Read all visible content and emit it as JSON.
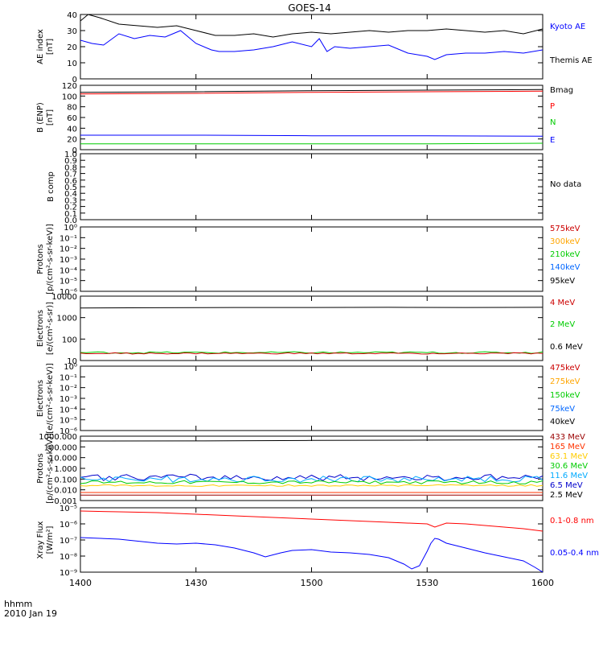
{
  "title": "GOES-14",
  "time_axis": {
    "ticks": [
      "1400",
      "1430",
      "1500",
      "1530",
      "1600"
    ],
    "label_line1": "hhmm",
    "label_line2": "2010 Jan 19"
  },
  "chart_data": [
    {
      "id": "ae",
      "type": "line",
      "ylabel": [
        "AE index",
        "[nT]"
      ],
      "ylim": [
        0,
        40
      ],
      "yticks": [
        {
          "v": 0,
          "t": "0"
        },
        {
          "v": 10,
          "t": "10"
        },
        {
          "v": 20,
          "t": "20"
        },
        {
          "v": 30,
          "t": "30"
        },
        {
          "v": 40,
          "t": "40"
        }
      ],
      "legend": [
        {
          "text": "Kyoto AE",
          "color": "#0000ff"
        },
        {
          "text": "Themis AE",
          "color": "#000000"
        }
      ],
      "series": [
        {
          "name": "Kyoto AE",
          "color": "#0000ff",
          "x": [
            0,
            3,
            6,
            10,
            14,
            18,
            22,
            26,
            30,
            34,
            36,
            40,
            45,
            50,
            55,
            60,
            62,
            64,
            66,
            70,
            75,
            80,
            85,
            90,
            92,
            95,
            100,
            105,
            110,
            115,
            120
          ],
          "y": [
            24,
            22,
            21,
            28,
            25,
            27,
            26,
            30,
            22,
            18,
            17,
            17,
            18,
            20,
            23,
            20,
            25,
            17,
            20,
            19,
            20,
            21,
            16,
            14,
            12,
            15,
            16,
            16,
            17,
            16,
            18
          ]
        },
        {
          "name": "Themis AE",
          "color": "#000000",
          "x": [
            0,
            2,
            5,
            10,
            15,
            20,
            25,
            30,
            35,
            40,
            45,
            50,
            55,
            60,
            65,
            70,
            75,
            80,
            85,
            90,
            95,
            100,
            105,
            110,
            115,
            120
          ],
          "y": [
            36,
            40,
            38,
            34,
            33,
            32,
            33,
            30,
            27,
            27,
            28,
            26,
            28,
            29,
            28,
            29,
            30,
            29,
            30,
            30,
            31,
            30,
            29,
            30,
            28,
            31
          ]
        }
      ]
    },
    {
      "id": "bfield",
      "type": "line",
      "ylabel": [
        "B (ENP)",
        "[nT]"
      ],
      "ylim": [
        0,
        120
      ],
      "yticks": [
        {
          "v": 0,
          "t": "0"
        },
        {
          "v": 20,
          "t": "20"
        },
        {
          "v": 40,
          "t": "40"
        },
        {
          "v": 60,
          "t": "60"
        },
        {
          "v": 80,
          "t": "80"
        },
        {
          "v": 100,
          "t": "100"
        },
        {
          "v": 120,
          "t": "120"
        }
      ],
      "legend": [
        {
          "text": "Bmag",
          "color": "#000000"
        },
        {
          "text": "P",
          "color": "#ff0000"
        },
        {
          "text": "N",
          "color": "#00cc00"
        },
        {
          "text": "E",
          "color": "#0000ff"
        }
      ],
      "series": [
        {
          "name": "Bmag",
          "color": "#000000",
          "x": [
            0,
            30,
            60,
            90,
            120
          ],
          "y": [
            107,
            108,
            110,
            111,
            112
          ]
        },
        {
          "name": "P",
          "color": "#ff0000",
          "x": [
            0,
            30,
            60,
            90,
            120
          ],
          "y": [
            104,
            105,
            107,
            108,
            109
          ]
        },
        {
          "name": "E",
          "color": "#0000ff",
          "x": [
            0,
            30,
            60,
            90,
            120
          ],
          "y": [
            27,
            27,
            26,
            26,
            25
          ]
        },
        {
          "name": "N",
          "color": "#00cc00",
          "x": [
            0,
            30,
            60,
            90,
            120
          ],
          "y": [
            11,
            11,
            11,
            11,
            12
          ]
        }
      ]
    },
    {
      "id": "bcomp",
      "type": "line",
      "ylabel": [
        "B comp"
      ],
      "ylim": [
        0,
        1
      ],
      "yticks": [
        {
          "v": 0,
          "t": "0.0"
        },
        {
          "v": 0.1,
          "t": "0.1"
        },
        {
          "v": 0.2,
          "t": "0.2"
        },
        {
          "v": 0.3,
          "t": "0.3"
        },
        {
          "v": 0.4,
          "t": "0.4"
        },
        {
          "v": 0.5,
          "t": "0.5"
        },
        {
          "v": 0.6,
          "t": "0.6"
        },
        {
          "v": 0.7,
          "t": "0.7"
        },
        {
          "v": 0.8,
          "t": "0.8"
        },
        {
          "v": 0.9,
          "t": "0.9"
        },
        {
          "v": 1,
          "t": "1.0"
        }
      ],
      "legend": [
        {
          "text": "No data",
          "color": "#000000"
        }
      ],
      "series": []
    },
    {
      "id": "protons_mag",
      "type": "line",
      "log": true,
      "ylabel": [
        "Protons",
        "[p/(cm²-s-sr-keV)]"
      ],
      "ylim": [
        -6,
        0
      ],
      "yticks": [
        {
          "v": -6,
          "t": "10⁻⁶"
        },
        {
          "v": -5,
          "t": "10⁻⁵"
        },
        {
          "v": -4,
          "t": "10⁻⁴"
        },
        {
          "v": -3,
          "t": "10⁻³"
        },
        {
          "v": -2,
          "t": "10⁻²"
        },
        {
          "v": -1,
          "t": "10⁻¹"
        },
        {
          "v": 0,
          "t": "10⁰"
        }
      ],
      "legend": [
        {
          "text": "575keV",
          "color": "#cc0000"
        },
        {
          "text": "300keV",
          "color": "#ffa500"
        },
        {
          "text": "210keV",
          "color": "#00cc00"
        },
        {
          "text": "140keV",
          "color": "#0066ff"
        },
        {
          "text": "95keV",
          "color": "#000000"
        }
      ],
      "series": []
    },
    {
      "id": "electrons_mev",
      "type": "line",
      "log": true,
      "ylabel": [
        "Electrons",
        "[e/(cm²-s-sr)]"
      ],
      "ylim": [
        1,
        4
      ],
      "yticks": [
        {
          "v": 1,
          "t": "10"
        },
        {
          "v": 2,
          "t": "100"
        },
        {
          "v": 3,
          "t": "1000"
        },
        {
          "v": 4,
          "t": "10000"
        }
      ],
      "legend": [
        {
          "text": "4 MeV",
          "color": "#cc0000"
        },
        {
          "text": "2 MeV",
          "color": "#00cc00"
        },
        {
          "text": "0.6 MeV",
          "color": "#000000"
        }
      ],
      "series": [
        {
          "name": "0.6 MeV",
          "color": "#000000",
          "x": [
            0,
            20,
            40,
            60,
            80,
            100,
            120
          ],
          "y": [
            3.45,
            3.46,
            3.47,
            3.47,
            3.48,
            3.47,
            3.48
          ]
        },
        {
          "name": "2 MeV",
          "color": "#00cc00",
          "noise": 0.04,
          "x": [
            0,
            120
          ],
          "y": [
            1.37,
            1.37
          ]
        },
        {
          "name": "4 MeV",
          "color": "#cc0000",
          "noise": 0.03,
          "x": [
            0,
            120
          ],
          "y": [
            1.33,
            1.33
          ]
        }
      ]
    },
    {
      "id": "electrons_mag",
      "type": "line",
      "log": true,
      "ylabel": [
        "Electrons",
        "[e/(cm²-s-sr-keV)]"
      ],
      "ylim": [
        -6,
        0
      ],
      "yticks": [
        {
          "v": -6,
          "t": "10⁻⁶"
        },
        {
          "v": -5,
          "t": "10⁻⁵"
        },
        {
          "v": -4,
          "t": "10⁻⁴"
        },
        {
          "v": -3,
          "t": "10⁻³"
        },
        {
          "v": -2,
          "t": "10⁻²"
        },
        {
          "v": -1,
          "t": "10⁻¹"
        },
        {
          "v": 0,
          "t": "10⁰"
        }
      ],
      "legend": [
        {
          "text": "475keV",
          "color": "#cc0000"
        },
        {
          "text": "275keV",
          "color": "#ffa500"
        },
        {
          "text": "150keV",
          "color": "#00cc00"
        },
        {
          "text": "75keV",
          "color": "#0066ff"
        },
        {
          "text": "40keV",
          "color": "#000000"
        }
      ],
      "series": []
    },
    {
      "id": "protons_mev",
      "type": "line",
      "log": true,
      "ylabel": [
        "Protons",
        "[p/(cm²-s-sr-keV)]"
      ],
      "ylim": [
        -3,
        3
      ],
      "yticks": [
        {
          "v": -3,
          "t": "0.001"
        },
        {
          "v": -2,
          "t": "0.010"
        },
        {
          "v": -1,
          "t": "0.100"
        },
        {
          "v": 0,
          "t": "1.000"
        },
        {
          "v": 1,
          "t": "10.000"
        },
        {
          "v": 2,
          "t": "100.000"
        },
        {
          "v": 3,
          "t": "1000.000"
        }
      ],
      "legend": [
        {
          "text": "433 MeV",
          "color": "#990000"
        },
        {
          "text": "165 MeV",
          "color": "#ff3300"
        },
        {
          "text": "63.1 MeV",
          "color": "#ffcc00"
        },
        {
          "text": "30.6 MeV",
          "color": "#00cc00"
        },
        {
          "text": "11.6 MeV",
          "color": "#00aaff"
        },
        {
          "text": "6.5 MeV",
          "color": "#0000cc"
        },
        {
          "text": "2.5 MeV",
          "color": "#000000"
        }
      ],
      "series": [
        {
          "name": "2.5 MeV",
          "color": "#000000",
          "x": [
            0,
            30,
            60,
            90,
            120
          ],
          "y": [
            2.55,
            2.56,
            2.6,
            2.63,
            2.66
          ]
        },
        {
          "name": "6.5 MeV",
          "color": "#0000cc",
          "noise": 0.3,
          "x": [
            0,
            120
          ],
          "y": [
            -0.85,
            -0.85
          ]
        },
        {
          "name": "11.6 MeV",
          "color": "#00aaff",
          "noise": 0.3,
          "x": [
            0,
            120
          ],
          "y": [
            -1.0,
            -1.0
          ]
        },
        {
          "name": "30.6 MeV",
          "color": "#00cc00",
          "noise": 0.15,
          "x": [
            0,
            120
          ],
          "y": [
            -1.3,
            -1.3
          ]
        },
        {
          "name": "63.1 MeV",
          "color": "#ffcc00",
          "noise": 0.08,
          "x": [
            0,
            120
          ],
          "y": [
            -1.6,
            -1.6
          ]
        },
        {
          "name": "165 MeV",
          "color": "#ff3300",
          "x": [
            0,
            120
          ],
          "y": [
            -2.25,
            -2.25
          ]
        },
        {
          "name": "433 MeV",
          "color": "#990000",
          "x": [
            0,
            120
          ],
          "y": [
            -2.5,
            -2.5
          ]
        }
      ]
    },
    {
      "id": "xray",
      "type": "line",
      "log": true,
      "ylabel": [
        "Xray Flux",
        "[W/m²]"
      ],
      "ylim": [
        -9,
        -5
      ],
      "yticks": [
        {
          "v": -9,
          "t": "10⁻⁹"
        },
        {
          "v": -8,
          "t": "10⁻⁸"
        },
        {
          "v": -7,
          "t": "10⁻⁷"
        },
        {
          "v": -6,
          "t": "10⁻⁶"
        },
        {
          "v": -5,
          "t": "10⁻⁵"
        }
      ],
      "legend": [
        {
          "text": "0.1-0.8 nm",
          "color": "#ff0000"
        },
        {
          "text": "0.05-0.4 nm",
          "color": "#0000ff"
        }
      ],
      "series": [
        {
          "name": "0.1-0.8 nm",
          "color": "#ff0000",
          "x": [
            0,
            10,
            20,
            30,
            40,
            50,
            60,
            70,
            80,
            90,
            92,
            95,
            100,
            110,
            115,
            120
          ],
          "y": [
            -5.2,
            -5.25,
            -5.3,
            -5.4,
            -5.5,
            -5.6,
            -5.7,
            -5.8,
            -5.9,
            -6.0,
            -6.2,
            -5.95,
            -6.0,
            -6.2,
            -6.3,
            -6.45
          ]
        },
        {
          "name": "0.05-0.4 nm",
          "color": "#0000ff",
          "x": [
            0,
            10,
            20,
            25,
            30,
            35,
            40,
            45,
            48,
            52,
            55,
            60,
            65,
            70,
            75,
            80,
            84,
            86,
            88,
            90,
            91,
            92,
            93,
            95,
            100,
            105,
            110,
            115,
            118,
            120
          ],
          "y": [
            -6.85,
            -6.95,
            -7.2,
            -7.25,
            -7.2,
            -7.3,
            -7.5,
            -7.8,
            -8.05,
            -7.8,
            -7.65,
            -7.6,
            -7.75,
            -7.8,
            -7.9,
            -8.1,
            -8.5,
            -8.8,
            -8.6,
            -7.7,
            -7.2,
            -6.9,
            -6.95,
            -7.2,
            -7.5,
            -7.8,
            -8.05,
            -8.3,
            -8.7,
            -9.0
          ]
        }
      ]
    }
  ]
}
